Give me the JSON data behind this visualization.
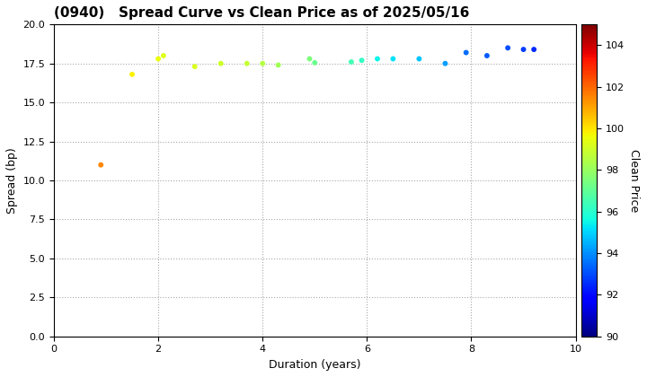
{
  "title": "(0940)   Spread Curve vs Clean Price as of 2025/05/16",
  "xlabel": "Duration (years)",
  "ylabel": "Spread (bp)",
  "colorbar_label": "Clean Price",
  "xlim": [
    0,
    10
  ],
  "ylim": [
    0.0,
    20.0
  ],
  "yticks": [
    0.0,
    2.5,
    5.0,
    7.5,
    10.0,
    12.5,
    15.0,
    17.5,
    20.0
  ],
  "xticks": [
    0,
    2,
    4,
    6,
    8,
    10
  ],
  "colorbar_min": 90,
  "colorbar_max": 105,
  "colorbar_ticks": [
    90,
    92,
    94,
    96,
    98,
    100,
    102,
    104
  ],
  "points": [
    {
      "duration": 0.9,
      "spread": 11.0,
      "price": 101.5
    },
    {
      "duration": 1.5,
      "spread": 16.8,
      "price": 99.8
    },
    {
      "duration": 2.0,
      "spread": 17.8,
      "price": 99.5
    },
    {
      "duration": 2.1,
      "spread": 18.0,
      "price": 99.3
    },
    {
      "duration": 2.7,
      "spread": 17.3,
      "price": 99.2
    },
    {
      "duration": 3.2,
      "spread": 17.5,
      "price": 99.0
    },
    {
      "duration": 3.7,
      "spread": 17.5,
      "price": 98.8
    },
    {
      "duration": 4.0,
      "spread": 17.5,
      "price": 98.5
    },
    {
      "duration": 4.3,
      "spread": 17.4,
      "price": 98.2
    },
    {
      "duration": 4.9,
      "spread": 17.8,
      "price": 97.5
    },
    {
      "duration": 5.0,
      "spread": 17.55,
      "price": 97.2
    },
    {
      "duration": 5.7,
      "spread": 17.6,
      "price": 96.5
    },
    {
      "duration": 5.9,
      "spread": 17.7,
      "price": 96.2
    },
    {
      "duration": 6.2,
      "spread": 17.8,
      "price": 95.5
    },
    {
      "duration": 6.5,
      "spread": 17.8,
      "price": 95.2
    },
    {
      "duration": 7.0,
      "spread": 17.8,
      "price": 94.8
    },
    {
      "duration": 7.5,
      "spread": 17.5,
      "price": 94.2
    },
    {
      "duration": 7.9,
      "spread": 18.2,
      "price": 93.5
    },
    {
      "duration": 8.3,
      "spread": 18.0,
      "price": 93.2
    },
    {
      "duration": 8.7,
      "spread": 18.5,
      "price": 93.0
    },
    {
      "duration": 9.0,
      "spread": 18.4,
      "price": 92.8
    },
    {
      "duration": 9.2,
      "spread": 18.4,
      "price": 92.5
    }
  ],
  "marker_size": 18,
  "background_color": "#ffffff",
  "grid_color": "#aaaaaa"
}
